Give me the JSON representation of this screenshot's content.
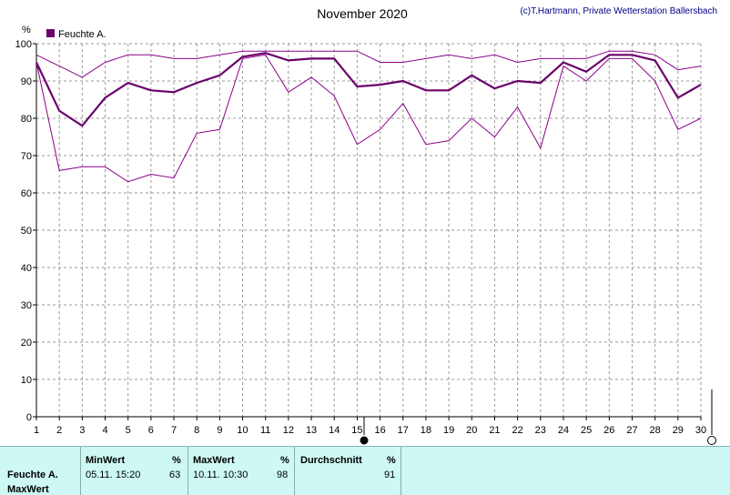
{
  "chart_data": {
    "type": "line",
    "title": "November 2020",
    "credit": "(c)T.Hartmann, Private Wetterstation Ballersbach",
    "ylabel": "%",
    "ylim": [
      0,
      100
    ],
    "yticks": [
      0,
      10,
      20,
      30,
      40,
      50,
      60,
      70,
      80,
      90,
      100
    ],
    "x": [
      1,
      2,
      3,
      4,
      5,
      6,
      7,
      8,
      9,
      10,
      11,
      12,
      13,
      14,
      15,
      16,
      17,
      18,
      19,
      20,
      21,
      22,
      23,
      24,
      25,
      26,
      27,
      28,
      29,
      30
    ],
    "xlim": [
      1,
      30
    ],
    "grid": true,
    "legend": "top-left",
    "legend_label": "Feuchte A.",
    "colors": {
      "avg": "#6a006a",
      "minmax": "#8b008b",
      "grid": "#9a9a9a"
    },
    "series": [
      {
        "name": "Feuchte A.",
        "role": "avg",
        "values": [
          95,
          82,
          78,
          85.5,
          89.5,
          87.5,
          87,
          89.5,
          91.5,
          96.5,
          97.5,
          95.5,
          96,
          96,
          88.5,
          89,
          90,
          87.5,
          87.5,
          91.5,
          88,
          90,
          89.5,
          95,
          92.5,
          97,
          97,
          95.5,
          85.5,
          89
        ]
      },
      {
        "role": "max",
        "values": [
          97,
          94,
          91,
          95,
          97,
          97,
          96,
          96,
          97,
          98,
          98,
          98,
          98,
          98,
          98,
          95,
          95,
          96,
          97,
          96,
          97,
          95,
          96,
          96,
          96,
          98,
          98,
          97,
          93,
          94
        ]
      },
      {
        "role": "min",
        "values": [
          95,
          66,
          67,
          67,
          63,
          65,
          64,
          76,
          77,
          96,
          97,
          87,
          91,
          86,
          73,
          77,
          84,
          73,
          74,
          80,
          75,
          83,
          72,
          94,
          90,
          96,
          96,
          90,
          77,
          80
        ]
      }
    ]
  },
  "stats": {
    "row_label": "Feuchte A.",
    "row_label2": "MaxWert",
    "min": {
      "header": "MinWert",
      "unit": "%",
      "datetime": "05.11.  15:20",
      "value": "63"
    },
    "max": {
      "header": "MaxWert",
      "unit": "%",
      "datetime": "10.11.  10:30",
      "value": "98"
    },
    "avg": {
      "header": "Durchschnitt",
      "unit": "%",
      "value": "91"
    }
  }
}
